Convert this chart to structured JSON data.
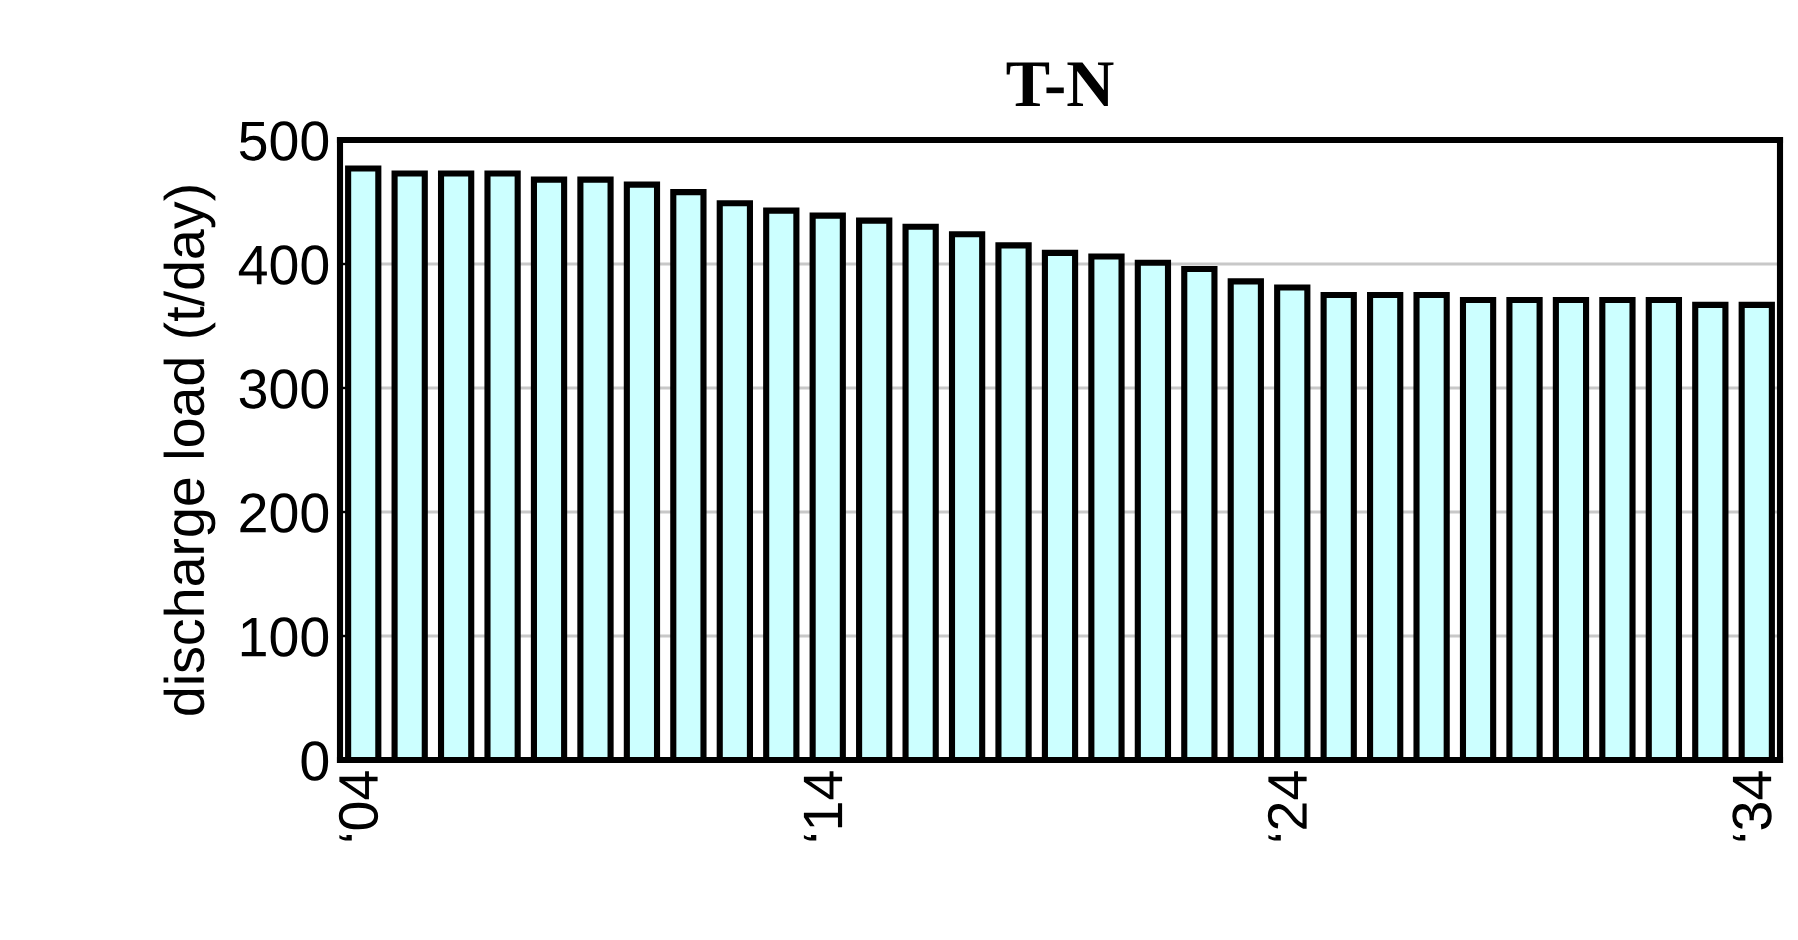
{
  "chart_data": {
    "type": "bar",
    "title": "T-N",
    "ylabel": "discharge load (t/day)",
    "categories": [
      "‘04",
      null,
      null,
      null,
      null,
      null,
      null,
      null,
      null,
      null,
      "‘14",
      null,
      null,
      null,
      null,
      null,
      null,
      null,
      null,
      null,
      "‘24",
      null,
      null,
      null,
      null,
      null,
      null,
      null,
      null,
      null,
      "‘34"
    ],
    "values": [
      477,
      473,
      473,
      473,
      468,
      468,
      464,
      458,
      449,
      443,
      439,
      435,
      430,
      424,
      415,
      409,
      406,
      401,
      396,
      386,
      381,
      375,
      375,
      375,
      371,
      371,
      371,
      371,
      371,
      367,
      367
    ],
    "color": "#ccffff",
    "ylim": [
      0,
      500
    ],
    "yticks": [
      0,
      100,
      200,
      300,
      400,
      500
    ],
    "grid": "y"
  }
}
